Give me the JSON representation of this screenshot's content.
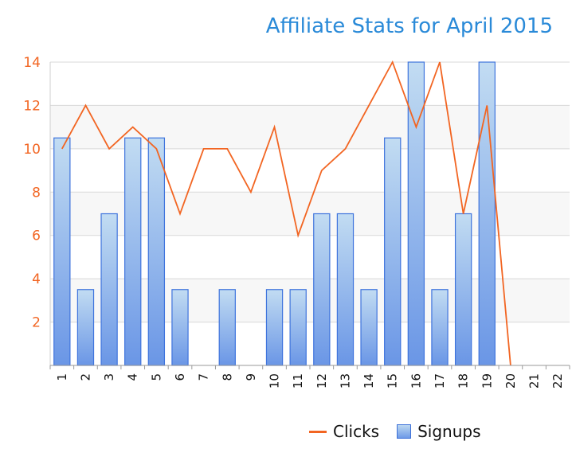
{
  "chart_data": {
    "type": "bar",
    "title": "Affiliate Stats for April 2015",
    "categories": [
      "1",
      "2",
      "3",
      "4",
      "5",
      "6",
      "7",
      "8",
      "9",
      "10",
      "11",
      "12",
      "13",
      "14",
      "15",
      "16",
      "17",
      "18",
      "19",
      "20",
      "21",
      "22"
    ],
    "series": [
      {
        "name": "Clicks",
        "kind": "line",
        "color": "#f26522",
        "values": [
          10,
          12,
          10,
          11,
          10,
          7,
          10,
          10,
          8,
          11,
          6,
          9,
          10,
          12,
          14,
          11,
          14,
          7,
          12,
          0,
          null,
          null
        ]
      },
      {
        "name": "Signups",
        "kind": "bar",
        "color": "#6f9ae8",
        "values": [
          10.5,
          3.5,
          7,
          10.5,
          10.5,
          3.5,
          0,
          3.5,
          0,
          3.5,
          3.5,
          7,
          7,
          3.5,
          10.5,
          14,
          3.5,
          7,
          14,
          0,
          0,
          0
        ]
      }
    ],
    "yticks": [
      2,
      4,
      6,
      8,
      10,
      12,
      14
    ],
    "ylim": [
      0,
      14
    ],
    "ytick_color": "#f26522",
    "grid": true,
    "legend": "bottom"
  }
}
